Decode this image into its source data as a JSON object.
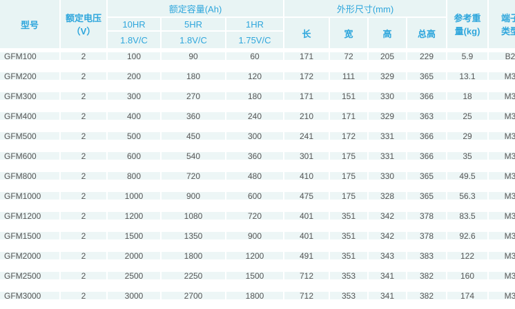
{
  "header": {
    "model": "型号",
    "voltage": "额定电压",
    "voltage_unit": "（V）",
    "capacity": "额定容量(Ah)",
    "rate10": "10HR",
    "rate5": "5HR",
    "rate1": "1HR",
    "v10": "1.8V/C",
    "v5": "1.8V/C",
    "v1": "1.75V/C",
    "dims": "外形尺寸(mm)",
    "length": "长",
    "width": "宽",
    "height": "高",
    "total_height": "总高",
    "weight": "参考重量(kg)",
    "terminal": "端子类型"
  },
  "rows": [
    [
      "GFM100",
      "2",
      "100",
      "90",
      "60",
      "171",
      "72",
      "205",
      "229",
      "5.9",
      "B2"
    ],
    [
      "GFM200",
      "2",
      "200",
      "180",
      "120",
      "172",
      "111",
      "329",
      "365",
      "13.1",
      "M3"
    ],
    [
      "GFM300",
      "2",
      "300",
      "270",
      "180",
      "171",
      "151",
      "330",
      "366",
      "18",
      "M3"
    ],
    [
      "GFM400",
      "2",
      "400",
      "360",
      "240",
      "210",
      "171",
      "329",
      "363",
      "25",
      "M3"
    ],
    [
      "GFM500",
      "2",
      "500",
      "450",
      "300",
      "241",
      "172",
      "331",
      "366",
      "29",
      "M3"
    ],
    [
      "GFM600",
      "2",
      "600",
      "540",
      "360",
      "301",
      "175",
      "331",
      "366",
      "35",
      "M3"
    ],
    [
      "GFM800",
      "2",
      "800",
      "720",
      "480",
      "410",
      "175",
      "330",
      "365",
      "49.5",
      "M3"
    ],
    [
      "GFM1000",
      "2",
      "1000",
      "900",
      "600",
      "475",
      "175",
      "328",
      "365",
      "56.3",
      "M3"
    ],
    [
      "GFM1200",
      "2",
      "1200",
      "1080",
      "720",
      "401",
      "351",
      "342",
      "378",
      "83.5",
      "M3"
    ],
    [
      "GFM1500",
      "2",
      "1500",
      "1350",
      "900",
      "401",
      "351",
      "342",
      "378",
      "92.6",
      "M3"
    ],
    [
      "GFM2000",
      "2",
      "2000",
      "1800",
      "1200",
      "491",
      "351",
      "343",
      "383",
      "122",
      "M3"
    ],
    [
      "GFM2500",
      "2",
      "2500",
      "2250",
      "1500",
      "712",
      "353",
      "341",
      "382",
      "160",
      "M3"
    ],
    [
      "GFM3000",
      "2",
      "3000",
      "2700",
      "1800",
      "712",
      "353",
      "341",
      "382",
      "174",
      "M3"
    ]
  ]
}
